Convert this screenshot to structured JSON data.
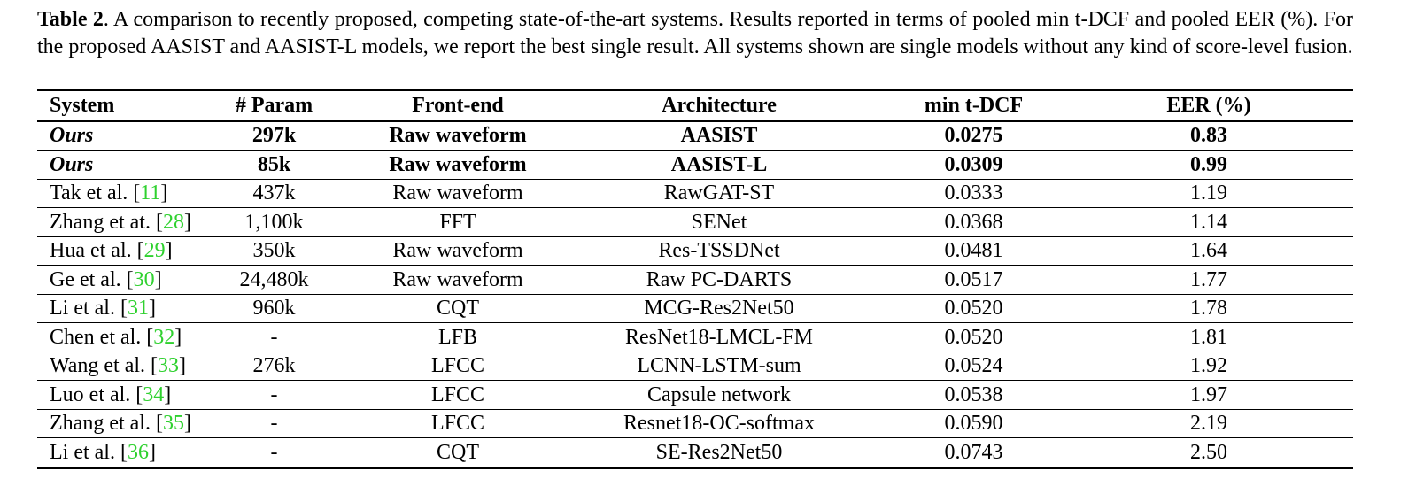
{
  "caption": {
    "label": "Table 2",
    "text": ".  A comparison to recently proposed, competing state-of-the-art systems. Results reported in terms of pooled min t-DCF and pooled EER (%). For the proposed AASIST and AASIST-L models, we report the best single result. All systems shown are single models without any kind of score-level fusion."
  },
  "table": {
    "headers": [
      "System",
      "# Param",
      "Front-end",
      "Architecture",
      "min t-DCF",
      "EER (%)"
    ],
    "rows": [
      {
        "system": "Ours",
        "ref": "",
        "param": "297k",
        "frontend": "Raw waveform",
        "architecture": "AASIST",
        "tdcf": "0.0275",
        "eer": "0.83",
        "highlight": true
      },
      {
        "system": "Ours",
        "ref": "",
        "param": "85k",
        "frontend": "Raw waveform",
        "architecture": "AASIST-L",
        "tdcf": "0.0309",
        "eer": "0.99",
        "highlight": true
      },
      {
        "system": "Tak et al. [",
        "ref": "11",
        "param": "437k",
        "frontend": "Raw waveform",
        "architecture": "RawGAT-ST",
        "tdcf": "0.0333",
        "eer": "1.19"
      },
      {
        "system": "Zhang et at. [",
        "ref": "28",
        "param": "1,100k",
        "frontend": "FFT",
        "architecture": "SENet",
        "tdcf": "0.0368",
        "eer": "1.14"
      },
      {
        "system": "Hua et al. [",
        "ref": "29",
        "param": "350k",
        "frontend": "Raw waveform",
        "architecture": "Res-TSSDNet",
        "tdcf": "0.0481",
        "eer": "1.64"
      },
      {
        "system": "Ge et al. [",
        "ref": "30",
        "param": "24,480k",
        "frontend": "Raw waveform",
        "architecture": "Raw PC-DARTS",
        "tdcf": "0.0517",
        "eer": "1.77"
      },
      {
        "system": "Li et al. [",
        "ref": "31",
        "param": "960k",
        "frontend": "CQT",
        "architecture": "MCG-Res2Net50",
        "tdcf": "0.0520",
        "eer": "1.78"
      },
      {
        "system": "Chen et al. [",
        "ref": "32",
        "param": "-",
        "frontend": "LFB",
        "architecture": "ResNet18-LMCL-FM",
        "tdcf": "0.0520",
        "eer": "1.81"
      },
      {
        "system": "Wang et al. [",
        "ref": "33",
        "param": "276k",
        "frontend": "LFCC",
        "architecture": "LCNN-LSTM-sum",
        "tdcf": "0.0524",
        "eer": "1.92"
      },
      {
        "system": "Luo et al. [",
        "ref": "34",
        "param": "-",
        "frontend": "LFCC",
        "architecture": "Capsule network",
        "tdcf": "0.0538",
        "eer": "1.97"
      },
      {
        "system": "Zhang et al. [",
        "ref": "35",
        "param": "-",
        "frontend": "LFCC",
        "architecture": "Resnet18-OC-softmax",
        "tdcf": "0.0590",
        "eer": "2.19"
      },
      {
        "system": "Li et al. [",
        "ref": "36",
        "param": "-",
        "frontend": "CQT",
        "architecture": "SE-Res2Net50",
        "tdcf": "0.0743",
        "eer": "2.50"
      }
    ]
  }
}
